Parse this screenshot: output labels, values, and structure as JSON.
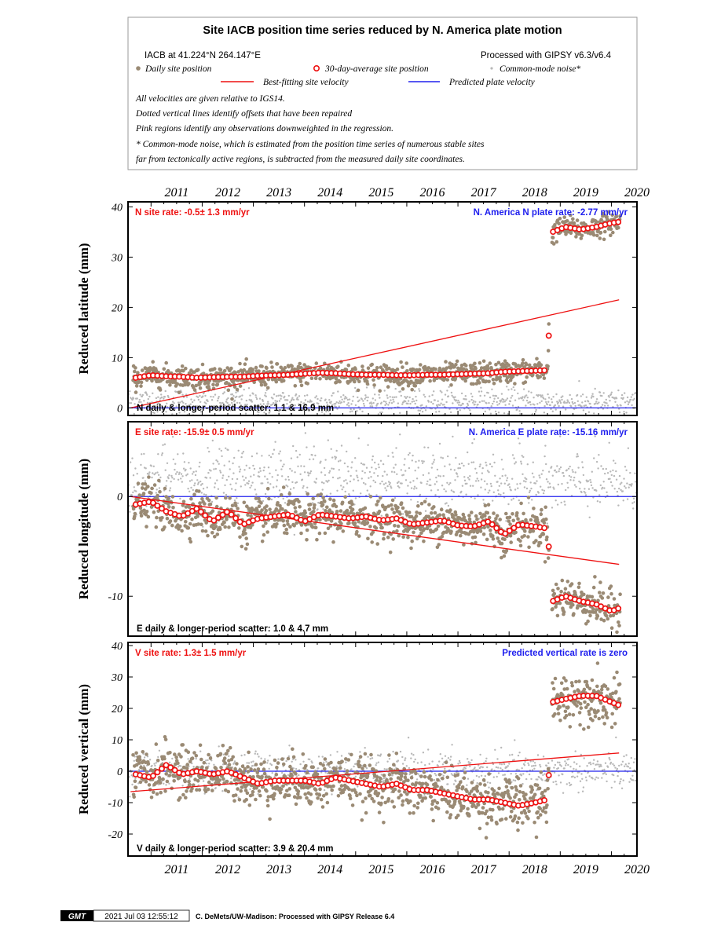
{
  "header": {
    "title": "Site IACB position time series reduced by N. America plate motion",
    "site_line": "IACB at 41.224°N 264.147°E",
    "processing_line": "Processed with GIPSY v6.3/v6.4",
    "legend": {
      "daily": "Daily site position",
      "avg30": "30-day-average site position",
      "cmn": "Common-mode noise*",
      "best_fit": "Best-fitting site velocity",
      "plate": "Predicted plate velocity"
    },
    "notes": [
      "All velocities are given relative to IGS14.",
      "Dotted vertical lines identify offsets that have been repaired",
      "Pink regions identify any observations downweighted in the regression.",
      "* Common-mode noise, which is estimated from the position time series of numerous stable sites",
      "far from tectonically active regions, is subtracted from the measured daily site coordinates."
    ]
  },
  "footer": {
    "logo": "GMT",
    "timestamp": "2021 Jul 03 12:55:12",
    "credit": "C. DeMets/UW-Madison: Processed with GIPSY Release 6.4"
  },
  "colors": {
    "daily": "#9a8a74",
    "cmn": "#b8b8b8",
    "avg_stroke": "#ee1111",
    "best_fit": "#ee1111",
    "plate": "#2020ee",
    "site_rate_text": "#ee1111",
    "plate_text": "#2020ee"
  },
  "chart_data": [
    {
      "type": "scatter",
      "component": "N",
      "ylabel": "Reduced latitude (mm)",
      "xlim": [
        2010.55,
        2020.5
      ],
      "ylim": [
        -1.5,
        41
      ],
      "x_ticks": [
        "2011",
        "2012",
        "2013",
        "2014",
        "2015",
        "2016",
        "2017",
        "2018",
        "2019",
        "2020"
      ],
      "y_ticks": [
        0,
        10,
        20,
        30,
        40
      ],
      "site_rate_label": "N site rate:  -0.5± 1.3 mm/yr",
      "plate_rate_label": "N. America N plate rate: -2.77 mm/yr",
      "scatter_label": "N daily & longer-period scatter:   1.1 &  16.9 mm",
      "best_fit_line": {
        "x": [
          2010.6,
          2020.15
        ],
        "y": [
          0,
          21.5
        ]
      },
      "plate_line_y": 0,
      "daily_scatter_mm": 1.1,
      "avg30": {
        "x": [
          2010.7,
          2011.0,
          2011.3,
          2011.6,
          2011.9,
          2012.2,
          2012.5,
          2012.8,
          2013.1,
          2013.4,
          2013.7,
          2014.0,
          2014.3,
          2014.6,
          2014.9,
          2015.2,
          2015.5,
          2015.8,
          2016.1,
          2016.4,
          2016.7,
          2017.0,
          2017.3,
          2017.6,
          2017.9,
          2018.2,
          2018.5,
          2018.75,
          2018.85,
          2019.1,
          2019.4,
          2019.7,
          2020.0,
          2020.15
        ],
        "y": [
          6,
          6.5,
          6.3,
          6.2,
          6,
          6.1,
          6.2,
          6.2,
          6.4,
          6.5,
          6.6,
          6.8,
          7,
          6.9,
          6.7,
          6.6,
          6.6,
          6.5,
          6.5,
          6.6,
          6.6,
          6.7,
          6.8,
          6.9,
          7.2,
          7.3,
          7.4,
          7.5,
          35,
          36,
          35.5,
          36,
          36.8,
          37
        ]
      },
      "cmn": {
        "x": [
          2010.6,
          2012.0,
          2014.0,
          2016.0,
          2018.0,
          2020.5
        ],
        "y": [
          1.5,
          1.2,
          1.0,
          1.1,
          1.2,
          1.0
        ]
      }
    },
    {
      "type": "scatter",
      "component": "E",
      "ylabel": "Reduced longitude (mm)",
      "xlim": [
        2010.55,
        2020.5
      ],
      "ylim": [
        -14,
        7.5
      ],
      "x_ticks": [
        "2011",
        "2012",
        "2013",
        "2014",
        "2015",
        "2016",
        "2017",
        "2018",
        "2019",
        "2020"
      ],
      "y_ticks": [
        -10,
        0
      ],
      "site_rate_label": "E site rate:  -15.9± 0.5 mm/yr",
      "plate_rate_label": "N. America E plate rate: -15.16 mm/yr",
      "scatter_label": "E daily & longer-period scatter:   1.0 &   4.7 mm",
      "best_fit_line": {
        "x": [
          2010.6,
          2020.15
        ],
        "y": [
          0,
          -6.8
        ]
      },
      "plate_line_y": 0,
      "daily_scatter_mm": 1.0,
      "avg30": {
        "x": [
          2010.7,
          2011.0,
          2011.3,
          2011.6,
          2011.9,
          2012.2,
          2012.5,
          2012.8,
          2013.1,
          2013.4,
          2013.7,
          2014.0,
          2014.3,
          2014.6,
          2014.9,
          2015.2,
          2015.5,
          2015.8,
          2016.1,
          2016.4,
          2016.7,
          2017.0,
          2017.3,
          2017.6,
          2017.9,
          2018.2,
          2018.5,
          2018.75,
          2018.85,
          2019.1,
          2019.4,
          2019.7,
          2020.0,
          2020.15
        ],
        "y": [
          -0.8,
          -0.5,
          -1.5,
          -2.0,
          -1.2,
          -2.5,
          -1.5,
          -2.8,
          -2.2,
          -2.0,
          -1.8,
          -2.5,
          -1.8,
          -2.0,
          -2.2,
          -2.0,
          -2.4,
          -2.2,
          -2.8,
          -2.6,
          -2.4,
          -2.9,
          -3.0,
          -2.5,
          -3.8,
          -2.8,
          -3.0,
          -3.2,
          -10.5,
          -10.0,
          -10.5,
          -10.8,
          -11.5,
          -11.2
        ]
      },
      "cmn": {
        "x": [
          2010.6,
          2012.0,
          2014.0,
          2016.0,
          2018.0,
          2020.5
        ],
        "y": [
          1.5,
          2.0,
          2.2,
          1.8,
          1.5,
          1.2
        ]
      }
    },
    {
      "type": "scatter",
      "component": "V",
      "ylabel": "Reduced vertical (mm)",
      "xlim": [
        2010.55,
        2020.5
      ],
      "ylim": [
        -27,
        41
      ],
      "x_ticks": [
        "2011",
        "2012",
        "2013",
        "2014",
        "2015",
        "2016",
        "2017",
        "2018",
        "2019",
        "2020"
      ],
      "y_ticks": [
        -20,
        -10,
        0,
        10,
        20,
        30,
        40
      ],
      "site_rate_label": "V site rate:   1.3± 1.5 mm/yr",
      "plate_rate_label": "Predicted vertical rate is zero",
      "scatter_label": "V daily & longer-period scatter:   3.9 &  20.4 mm",
      "best_fit_line": {
        "x": [
          2010.6,
          2020.15
        ],
        "y": [
          -6.5,
          5.8
        ]
      },
      "plate_line_y": 0,
      "daily_scatter_mm": 3.9,
      "avg30": {
        "x": [
          2010.7,
          2011.0,
          2011.3,
          2011.6,
          2011.9,
          2012.2,
          2012.5,
          2012.8,
          2013.1,
          2013.4,
          2013.7,
          2014.0,
          2014.3,
          2014.6,
          2014.9,
          2015.2,
          2015.5,
          2015.8,
          2016.1,
          2016.4,
          2016.7,
          2017.0,
          2017.3,
          2017.6,
          2017.9,
          2018.2,
          2018.5,
          2018.75,
          2018.85,
          2019.1,
          2019.4,
          2019.7,
          2020.0,
          2020.15
        ],
        "y": [
          -1,
          -2,
          2,
          -1,
          0,
          -1,
          0,
          -2,
          -4,
          -3,
          -3,
          -3,
          -4,
          -2,
          -3,
          -4,
          -5,
          -4,
          -6,
          -6,
          -7,
          -8,
          -9,
          -9,
          -10,
          -11,
          -10,
          -9,
          22,
          23,
          24,
          24,
          22,
          21
        ]
      },
      "cmn": {
        "x": [
          2010.6,
          2012.0,
          2014.0,
          2016.0,
          2018.0,
          2020.5
        ],
        "y": [
          0,
          0,
          0,
          0,
          0,
          0
        ]
      }
    }
  ]
}
